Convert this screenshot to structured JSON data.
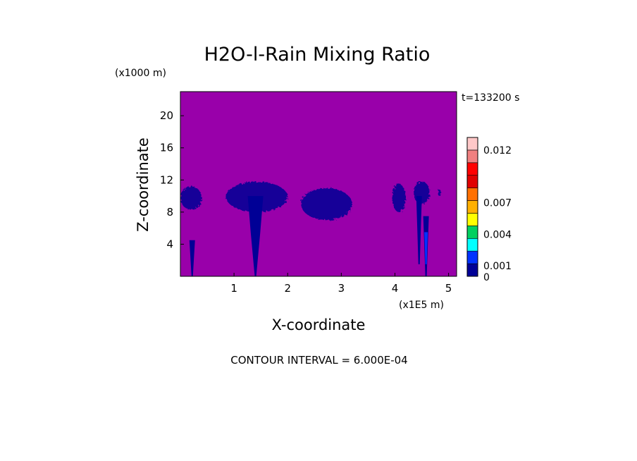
{
  "chart_data": {
    "type": "heatmap",
    "title": "H2O-l-Rain Mixing Ratio",
    "xlabel": "X-coordinate",
    "ylabel": "Z-coordinate",
    "x_unit": "(x1E5 m)",
    "y_unit": "(x1000 m)",
    "time_label": "t=133200 s",
    "footer": "CONTOUR INTERVAL = 6.000E-04",
    "xlim": [
      0,
      5.15
    ],
    "ylim": [
      0,
      23
    ],
    "x_ticks": [
      1,
      2,
      3,
      4,
      5
    ],
    "y_ticks": [
      4,
      8,
      12,
      16,
      20
    ],
    "background_value": 0,
    "colorbar": {
      "min": 0,
      "max": 0.0132,
      "tick_values": [
        0,
        0.001,
        0.004,
        0.007,
        0.012
      ],
      "tick_labels": [
        "0",
        "0.001",
        "0.004",
        "0.007",
        "0.012"
      ],
      "colors": [
        "#000096",
        "#0032ff",
        "#00ffff",
        "#00d060",
        "#ffff00",
        "#ffb000",
        "#ff7000",
        "#e00000",
        "#ff0000",
        "#f08080",
        "#ffc8c8"
      ],
      "background_color": "#9900aa"
    },
    "features": [
      {
        "kind": "layer",
        "x": [
          0.0,
          0.4
        ],
        "z": [
          8.3,
          11.2
        ],
        "value": 0.0006
      },
      {
        "kind": "layer",
        "x": [
          0.85,
          2.0
        ],
        "z": [
          8.0,
          11.8
        ],
        "value": 0.0006
      },
      {
        "kind": "layer",
        "x": [
          2.25,
          3.2
        ],
        "z": [
          7.0,
          11.0
        ],
        "value": 0.0006
      },
      {
        "kind": "layer",
        "x": [
          3.95,
          4.2
        ],
        "z": [
          8.0,
          11.5
        ],
        "value": 0.0006
      },
      {
        "kind": "layer",
        "x": [
          4.35,
          4.65
        ],
        "z": [
          9.0,
          11.8
        ],
        "value": 0.0006
      },
      {
        "kind": "layer",
        "x": [
          4.8,
          4.86
        ],
        "z": [
          10.0,
          10.8
        ],
        "value": 0.0006
      },
      {
        "kind": "shaft",
        "x": 1.4,
        "z": [
          0,
          10
        ],
        "value": 0.0006
      },
      {
        "kind": "shaft",
        "x": 0.22,
        "z": [
          0,
          4.5
        ],
        "value": 0.0006
      },
      {
        "kind": "shaft",
        "x": 4.45,
        "z": [
          1.5,
          10
        ],
        "value": 0.0006
      },
      {
        "kind": "shaft",
        "x": 4.58,
        "z": [
          0,
          7.5
        ],
        "value": 0.0012
      },
      {
        "kind": "core",
        "x": 4.58,
        "z": [
          1.5,
          5.5
        ],
        "value": 0.0024
      }
    ]
  }
}
